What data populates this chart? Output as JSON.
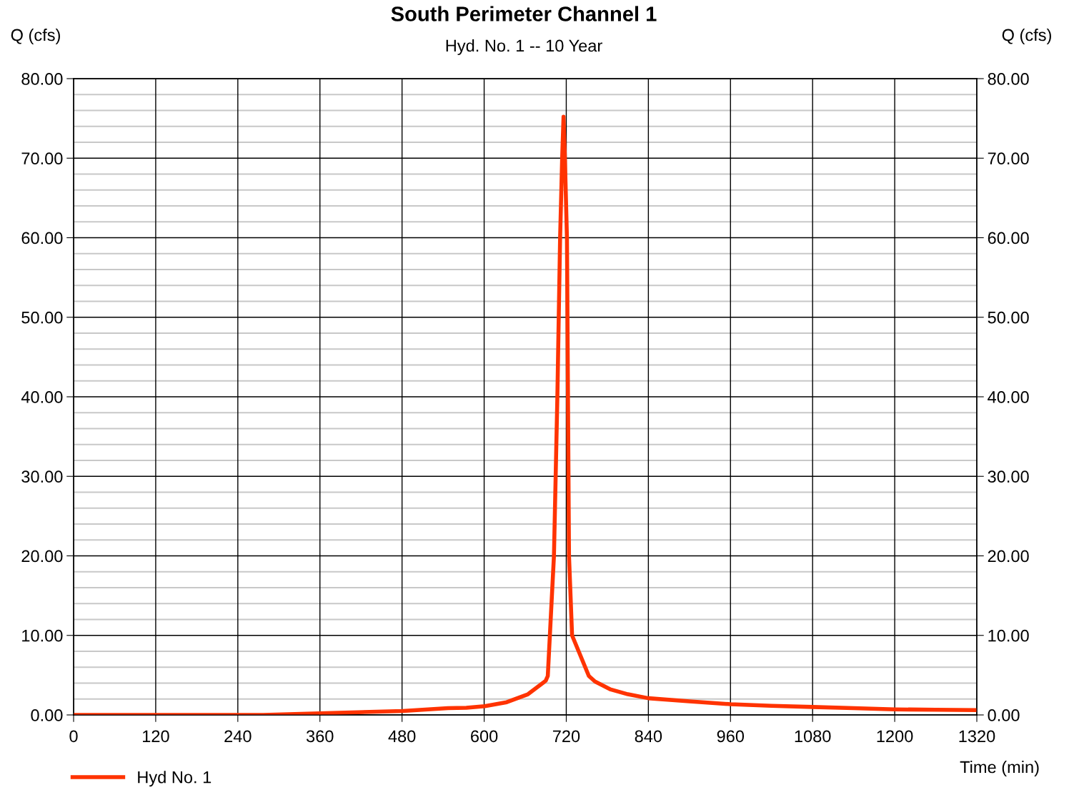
{
  "chart_data": {
    "type": "line",
    "title": "South Perimeter Channel 1",
    "subtitle": "Hyd. No. 1 -- 10 Year",
    "xlabel": "Time (min)",
    "ylabel": "Q (cfs)",
    "y2label": "Q (cfs)",
    "series": [
      {
        "name": "Hyd No. 1",
        "color": "#ff3300",
        "x": [
          0,
          120,
          240,
          277,
          360,
          481,
          547,
          574,
          601,
          633,
          664,
          690,
          693,
          702,
          707,
          711,
          714,
          716,
          718,
          721,
          724,
          728.5,
          753,
          762,
          785,
          810,
          840,
          900,
          960,
          1020,
          1080,
          1140,
          1200,
          1260,
          1320
        ],
        "values": [
          0,
          0,
          0,
          0,
          0.2,
          0.5,
          0.85,
          0.9,
          1.1,
          1.6,
          2.6,
          4.3,
          4.9,
          20,
          40,
          60,
          70,
          75.2,
          70,
          60,
          20,
          10,
          4.9,
          4.2,
          3.2,
          2.6,
          2.1,
          1.7,
          1.35,
          1.15,
          1.0,
          0.85,
          0.7,
          0.65,
          0.6
        ]
      }
    ],
    "xlim": [
      0,
      1320
    ],
    "xticks": [
      0,
      120,
      240,
      360,
      480,
      600,
      720,
      840,
      960,
      1080,
      1200,
      1320
    ],
    "ylim": [
      0,
      80
    ],
    "yticks": [
      {
        "value": 0,
        "label": "0.00"
      },
      {
        "value": 10,
        "label": "10.00"
      },
      {
        "value": 20,
        "label": "20.00"
      },
      {
        "value": 30,
        "label": "30.00"
      },
      {
        "value": 40,
        "label": "40.00"
      },
      {
        "value": 50,
        "label": "50.00"
      },
      {
        "value": 60,
        "label": "60.00"
      },
      {
        "value": 70,
        "label": "70.00"
      },
      {
        "value": 80,
        "label": "80.00"
      }
    ],
    "y2lim": [
      0,
      80
    ],
    "y2ticks": [
      {
        "value": 0,
        "label": "0.00"
      },
      {
        "value": 10,
        "label": "10.00"
      },
      {
        "value": 20,
        "label": "20.00"
      },
      {
        "value": 30,
        "label": "30.00"
      },
      {
        "value": 40,
        "label": "40.00"
      },
      {
        "value": 50,
        "label": "50.00"
      },
      {
        "value": 60,
        "label": "60.00"
      },
      {
        "value": 70,
        "label": "70.00"
      },
      {
        "value": 80,
        "label": "80.00"
      }
    ],
    "grid": true,
    "legend": "bottom left",
    "marker": "none",
    "line_style": "solid"
  }
}
